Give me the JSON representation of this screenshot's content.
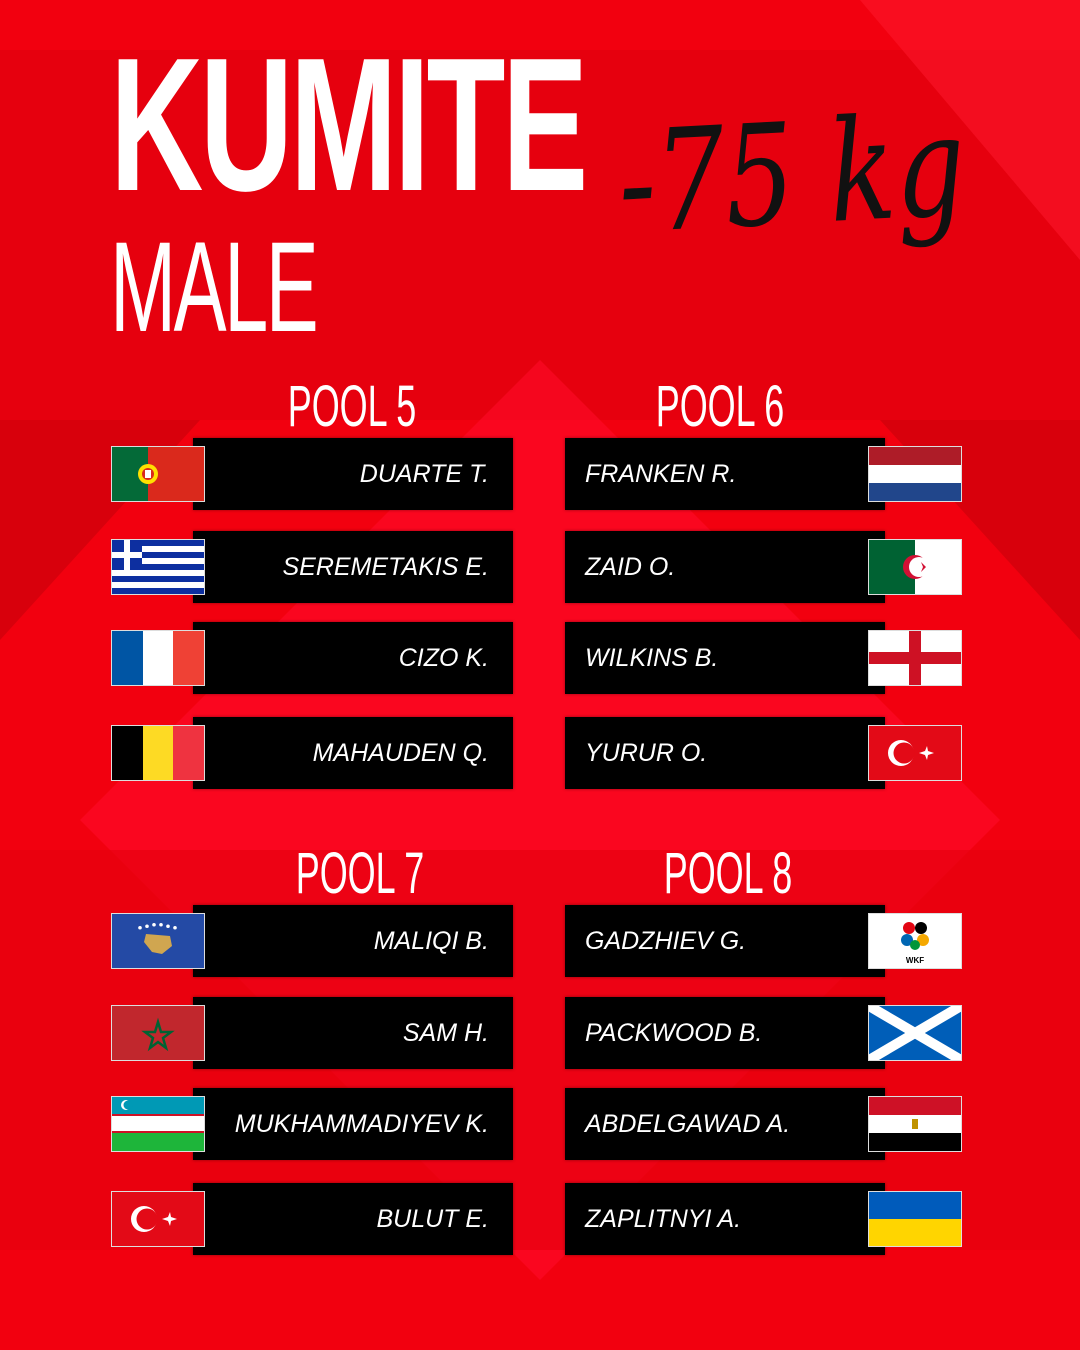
{
  "header": {
    "title": "KUMITE",
    "subtitle": "MALE",
    "weight": "-75 kg"
  },
  "colors": {
    "background": "#f2000f",
    "bar": "#000000",
    "text": "#ffffff"
  },
  "pools": [
    {
      "label": "POOL 5",
      "side": "left",
      "athletes": [
        {
          "name": "DUARTE T.",
          "flag": "portugal-flag"
        },
        {
          "name": "SEREMETAKIS E.",
          "flag": "greece-flag"
        },
        {
          "name": "CIZO K.",
          "flag": "france-flag"
        },
        {
          "name": "MAHAUDEN Q.",
          "flag": "belgium-flag"
        }
      ]
    },
    {
      "label": "POOL 6",
      "side": "right",
      "athletes": [
        {
          "name": "FRANKEN R.",
          "flag": "netherlands-flag"
        },
        {
          "name": "ZAID O.",
          "flag": "algeria-flag"
        },
        {
          "name": "WILKINS B.",
          "flag": "england-flag"
        },
        {
          "name": "YURUR O.",
          "flag": "turkey-flag"
        }
      ]
    },
    {
      "label": "POOL 7",
      "side": "left",
      "athletes": [
        {
          "name": "MALIQI B.",
          "flag": "kosovo-flag"
        },
        {
          "name": "SAM H.",
          "flag": "morocco-flag"
        },
        {
          "name": "MUKHAMMADIYEV K.",
          "flag": "uzbekistan-flag"
        },
        {
          "name": "BULUT E.",
          "flag": "turkey-flag"
        }
      ]
    },
    {
      "label": "POOL 8",
      "side": "right",
      "athletes": [
        {
          "name": "GADZHIEV G.",
          "flag": "wkf-flag",
          "flag_text": "WKF"
        },
        {
          "name": "PACKWOOD B.",
          "flag": "scotland-flag"
        },
        {
          "name": "ABDELGAWAD A.",
          "flag": "egypt-flag"
        },
        {
          "name": "ZAPLITNYI A.",
          "flag": "ukraine-flag"
        }
      ]
    }
  ]
}
